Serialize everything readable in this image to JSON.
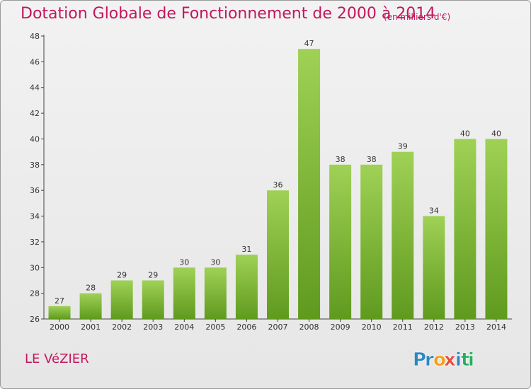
{
  "chart_data": {
    "type": "bar",
    "title": "Dotation Globale de Fonctionnement de 2000 à 2014",
    "subtitle": "(en milliers d'€)",
    "categories": [
      "2000",
      "2001",
      "2002",
      "2003",
      "2004",
      "2005",
      "2006",
      "2007",
      "2008",
      "2009",
      "2010",
      "2011",
      "2012",
      "2013",
      "2014"
    ],
    "values": [
      27,
      28,
      29,
      29,
      30,
      30,
      31,
      36,
      47,
      38,
      38,
      39,
      34,
      40,
      40
    ],
    "ylim": [
      26,
      48
    ],
    "yticks": [
      26,
      28,
      30,
      32,
      34,
      36,
      38,
      40,
      42,
      44,
      46,
      48
    ],
    "grid": false,
    "bar_color": "#7cb82f",
    "bar_color_light": "#9fd155",
    "bar_color_dark": "#5f9a1e"
  },
  "commune": "LE VéZIER",
  "logo": {
    "letters": [
      "P",
      "r",
      "o",
      "x",
      "i",
      "t",
      "i"
    ],
    "colors": [
      "#2e86c1",
      "#2e86c1",
      "#f39c12",
      "#e74c3c",
      "#2e86c1",
      "#27ae60",
      "#27ae60"
    ]
  },
  "colors": {
    "title": "#c2185b",
    "axis": "#444444"
  }
}
